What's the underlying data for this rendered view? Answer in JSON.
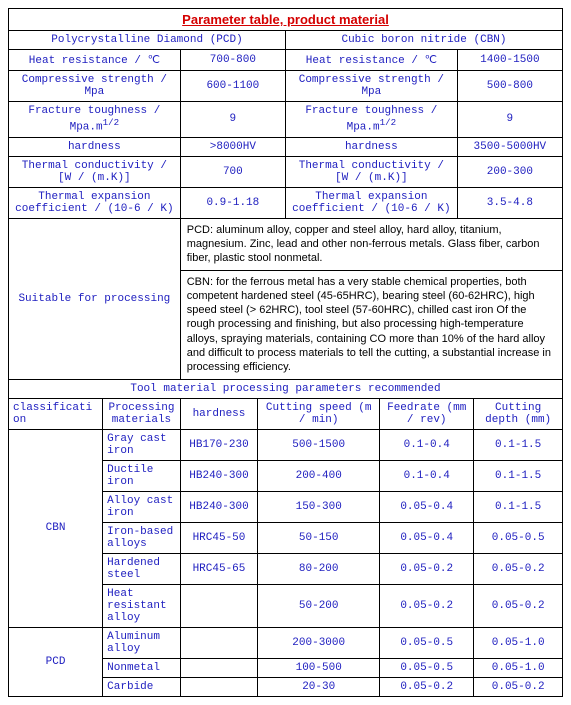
{
  "title": "Parameter table, product material",
  "mat": {
    "pcd": {
      "name": "Polycrystalline Diamond (PCD)",
      "heat": "Heat resistance / ℃",
      "heat_v": "700-800",
      "comp": "Compressive strength / Mpa",
      "comp_v": "600-1100",
      "frac": "Fracture toughness / Mpa.m",
      "frac_sup": "1/2",
      "frac_v": "9",
      "hard": "hardness",
      "hard_v": ">8000HV",
      "tc": "Thermal conductivity / [W / (m.K)]",
      "tc_v": "700",
      "te": "Thermal expansion coefficient / (10-6 / K)",
      "te_v": "0.9-1.18"
    },
    "cbn": {
      "name": "Cubic boron nitride (CBN)",
      "heat": "Heat resistance / ℃",
      "heat_v": "1400-1500",
      "comp": "Compressive strength / Mpa",
      "comp_v": "500-800",
      "frac": "Fracture toughness / Mpa.m",
      "frac_sup": "1/2",
      "frac_v": "9",
      "hard": "hardness",
      "hard_v": "3500-5000HV",
      "tc": "Thermal conductivity / [W / (m.K)]",
      "tc_v": "200-300",
      "te": "Thermal expansion coefficient / (10-6 / K)",
      "te_v": "3.5-4.8"
    }
  },
  "suitable_label": "Suitable for processing",
  "pcd_desc": "PCD: aluminum alloy, copper and steel alloy, hard alloy, titanium, magnesium. Zinc, lead and other non-ferrous metals. Glass fiber, carbon fiber, plastic stool nonmetal.",
  "cbn_desc": "CBN: for the ferrous metal has a very stable chemical properties, both competent hardened steel (45-65HRC), bearing steel (60-62HRC), high speed steel (> 62HRC), tool steel (57-60HRC), chilled cast iron Of the rough processing and finishing, but also processing high-temperature alloys, spraying materials, containing CO more than 10% of the hard alloy and difficult to process materials to tell the cutting, a substantial increase in processing efficiency.",
  "params_title": "Tool material processing parameters recommended",
  "cols": {
    "class": "classification",
    "pm": "Processing materials",
    "hard": "hardness",
    "cs": "Cutting speed (m / min)",
    "fr": "Feedrate (mm / rev)",
    "cd": "Cutting depth (mm)"
  },
  "rows": [
    {
      "g": "CBN",
      "pm": "Gray cast iron",
      "h": "HB170-230",
      "cs": "500-1500",
      "fr": "0.1-0.4",
      "cd": "0.1-1.5"
    },
    {
      "g": "CBN",
      "pm": "Ductile iron",
      "h": "HB240-300",
      "cs": "200-400",
      "fr": "0.1-0.4",
      "cd": "0.1-1.5"
    },
    {
      "g": "CBN",
      "pm": "Alloy cast iron",
      "h": "HB240-300",
      "cs": "150-300",
      "fr": "0.05-0.4",
      "cd": "0.1-1.5"
    },
    {
      "g": "CBN",
      "pm": "Iron-based alloys",
      "h": "HRC45-50",
      "cs": "50-150",
      "fr": "0.05-0.4",
      "cd": "0.05-0.5"
    },
    {
      "g": "CBN",
      "pm": "Hardened steel",
      "h": "HRC45-65",
      "cs": "80-200",
      "fr": "0.05-0.2",
      "cd": "0.05-0.2"
    },
    {
      "g": "CBN",
      "pm": "Heat resistant alloy",
      "h": "",
      "cs": "50-200",
      "fr": "0.05-0.2",
      "cd": "0.05-0.2"
    },
    {
      "g": "PCD",
      "pm": "Aluminum alloy",
      "h": "",
      "cs": "200-3000",
      "fr": "0.05-0.5",
      "cd": "0.05-1.0"
    },
    {
      "g": "PCD",
      "pm": "Nonmetal",
      "h": "",
      "cs": "100-500",
      "fr": "0.05-0.5",
      "cd": "0.05-1.0"
    },
    {
      "g": "PCD",
      "pm": "Carbide",
      "h": "",
      "cs": "20-30",
      "fr": "0.05-0.2",
      "cd": "0.05-0.2"
    }
  ]
}
